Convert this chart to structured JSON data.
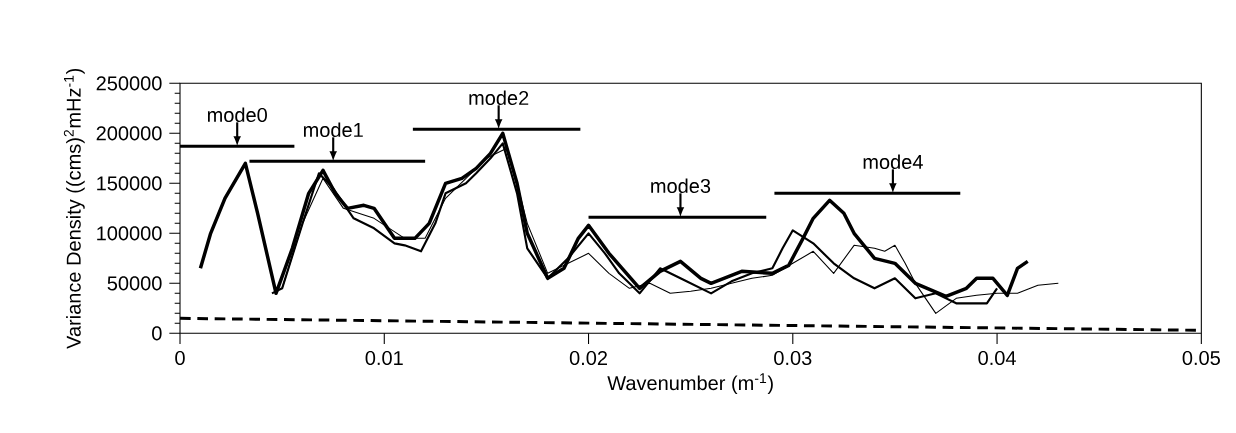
{
  "chart_data": {
    "type": "line",
    "xlabel": "Wavenumber (m$^{-1}$)",
    "ylabel": "Variance Density ((cms)$^{2}$mHz$^{-1}$)",
    "xlim": [
      0,
      0.05
    ],
    "ylim": [
      0,
      250000
    ],
    "xticks": [
      0,
      0.01,
      0.02,
      0.03,
      0.04,
      0.05
    ],
    "yticks": [
      0,
      50000,
      100000,
      150000,
      200000,
      250000
    ],
    "series": [
      {
        "color": "#000000",
        "x": [
          0.001,
          0.0015,
          0.0022,
          0.0032,
          0.0038,
          0.0047,
          0.0055,
          0.0063,
          0.007,
          0.0076,
          0.0082,
          0.009,
          0.0095,
          0.0105,
          0.0115,
          0.0122,
          0.013,
          0.0138,
          0.0145,
          0.0152,
          0.0158,
          0.0165,
          0.017,
          0.018,
          0.0188,
          0.0195,
          0.02,
          0.021,
          0.0225,
          0.0235,
          0.0245,
          0.0255,
          0.026,
          0.0275,
          0.029,
          0.0298,
          0.0305,
          0.031,
          0.0318,
          0.0325,
          0.033,
          0.034,
          0.035,
          0.036,
          0.0375,
          0.0385,
          0.039,
          0.0398,
          0.0405,
          0.041,
          0.0415
        ],
        "values": [
          65000,
          100000,
          135000,
          170000,
          120000,
          40000,
          85000,
          140000,
          163000,
          140000,
          125000,
          128000,
          125000,
          95000,
          95000,
          110000,
          150000,
          155000,
          165000,
          180000,
          200000,
          150000,
          100000,
          55000,
          65000,
          95000,
          108000,
          80000,
          45000,
          62000,
          72000,
          55000,
          50000,
          62000,
          60000,
          68000,
          95000,
          115000,
          133000,
          120000,
          100000,
          75000,
          70000,
          50000,
          37000,
          45000,
          55000,
          55000,
          38000,
          65000,
          72000
        ]
      },
      {
        "color": "#000000",
        "x": [
          0.0045,
          0.005,
          0.006,
          0.0068,
          0.0075,
          0.0085,
          0.0095,
          0.0105,
          0.011,
          0.0118,
          0.0125,
          0.013,
          0.014,
          0.0145,
          0.0152,
          0.0158,
          0.0165,
          0.017,
          0.018,
          0.019,
          0.02,
          0.0208,
          0.0215,
          0.0225,
          0.0235,
          0.0245,
          0.026,
          0.027,
          0.028,
          0.029,
          0.0295,
          0.03,
          0.031,
          0.032,
          0.033,
          0.034,
          0.035,
          0.036,
          0.037,
          0.038,
          0.0395,
          0.04
        ],
        "values": [
          40000,
          45000,
          110000,
          160000,
          145000,
          115000,
          105000,
          90000,
          88000,
          82000,
          110000,
          140000,
          150000,
          160000,
          175000,
          190000,
          140000,
          85000,
          55000,
          75000,
          100000,
          80000,
          60000,
          40000,
          65000,
          55000,
          40000,
          52000,
          60000,
          65000,
          85000,
          103000,
          90000,
          70000,
          55000,
          45000,
          55000,
          35000,
          40000,
          30000,
          30000,
          45000
        ]
      },
      {
        "color": "#000000",
        "x": [
          0.005,
          0.006,
          0.007,
          0.008,
          0.0095,
          0.011,
          0.012,
          0.013,
          0.014,
          0.015,
          0.016,
          0.0165,
          0.017,
          0.018,
          0.019,
          0.02,
          0.021,
          0.022,
          0.023,
          0.024,
          0.025,
          0.026,
          0.027,
          0.028,
          0.029,
          0.03,
          0.031,
          0.032,
          0.033,
          0.034,
          0.0345,
          0.035,
          0.0355,
          0.036,
          0.037,
          0.038,
          0.039,
          0.04,
          0.041,
          0.042,
          0.043
        ],
        "values": [
          45000,
          110000,
          155000,
          125000,
          115000,
          95000,
          95000,
          135000,
          155000,
          175000,
          185000,
          150000,
          110000,
          60000,
          70000,
          80000,
          60000,
          45000,
          50000,
          40000,
          42000,
          45000,
          50000,
          55000,
          58000,
          70000,
          82000,
          60000,
          88000,
          85000,
          82000,
          88000,
          70000,
          50000,
          20000,
          35000,
          38000,
          40000,
          40000,
          48000,
          50000
        ]
      },
      {
        "color": "#000000",
        "line_style": "dashed",
        "x": [
          0,
          0.05
        ],
        "values": [
          15000,
          3000
        ]
      },
      {
        "color": "#000000",
        "x": [
          0,
          0.0056
        ],
        "values": [
          187000,
          187000
        ]
      },
      {
        "color": "#000000",
        "x": [
          0.0034,
          0.012
        ],
        "values": [
          172000,
          172000
        ]
      },
      {
        "color": "#000000",
        "x": [
          0.0114,
          0.0196
        ],
        "values": [
          204000,
          204000
        ]
      },
      {
        "color": "#000000",
        "x": [
          0.02,
          0.0287
        ],
        "values": [
          116000,
          116000
        ]
      },
      {
        "color": "#000000",
        "x": [
          0.0291,
          0.0382
        ],
        "values": [
          140000,
          140000
        ]
      }
    ],
    "annotations": [
      {
        "text": "mode0",
        "x": 0.0028,
        "y": 187000
      },
      {
        "text": "mode1",
        "x": 0.0075,
        "y": 172000
      },
      {
        "text": "mode2",
        "x": 0.0156,
        "y": 204000
      },
      {
        "text": "mode3",
        "x": 0.0245,
        "y": 116000
      },
      {
        "text": "mode4",
        "x": 0.0349,
        "y": 140000
      }
    ]
  }
}
